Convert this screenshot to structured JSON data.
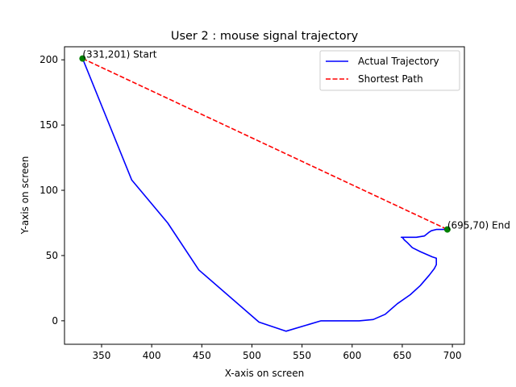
{
  "chart_data": {
    "type": "line",
    "title": "User 2 : mouse signal trajectory",
    "xlabel": "X-axis on screen",
    "ylabel": "Y-axis on screen",
    "xlim": [
      313,
      712
    ],
    "ylim": [
      -18,
      210
    ],
    "x_ticks": [
      350,
      400,
      450,
      500,
      550,
      600,
      650,
      700
    ],
    "y_ticks": [
      0,
      50,
      100,
      150,
      200
    ],
    "grid": false,
    "legend_position": "top-right",
    "series": [
      {
        "name": "Actual Trajectory",
        "color": "#0000ff",
        "style": "solid",
        "points": [
          [
            331,
            201
          ],
          [
            380,
            108
          ],
          [
            416,
            75
          ],
          [
            447,
            39
          ],
          [
            507,
            -1
          ],
          [
            534,
            -8
          ],
          [
            569,
            0
          ],
          [
            607,
            0
          ],
          [
            621,
            1
          ],
          [
            633,
            5
          ],
          [
            645,
            13
          ],
          [
            658,
            20
          ],
          [
            668,
            27
          ],
          [
            677,
            35
          ],
          [
            682,
            40
          ],
          [
            684,
            43
          ],
          [
            684,
            48
          ],
          [
            680,
            49
          ],
          [
            668,
            53
          ],
          [
            660,
            56
          ],
          [
            655,
            60
          ],
          [
            652,
            62
          ],
          [
            650,
            64
          ],
          [
            649,
            64
          ],
          [
            657,
            64
          ],
          [
            664,
            64
          ],
          [
            672,
            65
          ],
          [
            677,
            68
          ],
          [
            679,
            69
          ],
          [
            684,
            70
          ],
          [
            690,
            70
          ],
          [
            695,
            70
          ]
        ]
      },
      {
        "name": "Shortest Path",
        "color": "#ff0000",
        "style": "dashed",
        "points": [
          [
            331,
            201
          ],
          [
            695,
            70
          ]
        ]
      }
    ],
    "markers": [
      {
        "x": 331,
        "y": 201,
        "label": "(331,201) Start",
        "color": "#008000"
      },
      {
        "x": 695,
        "y": 70,
        "label": "(695,70) End",
        "color": "#008000"
      }
    ]
  }
}
